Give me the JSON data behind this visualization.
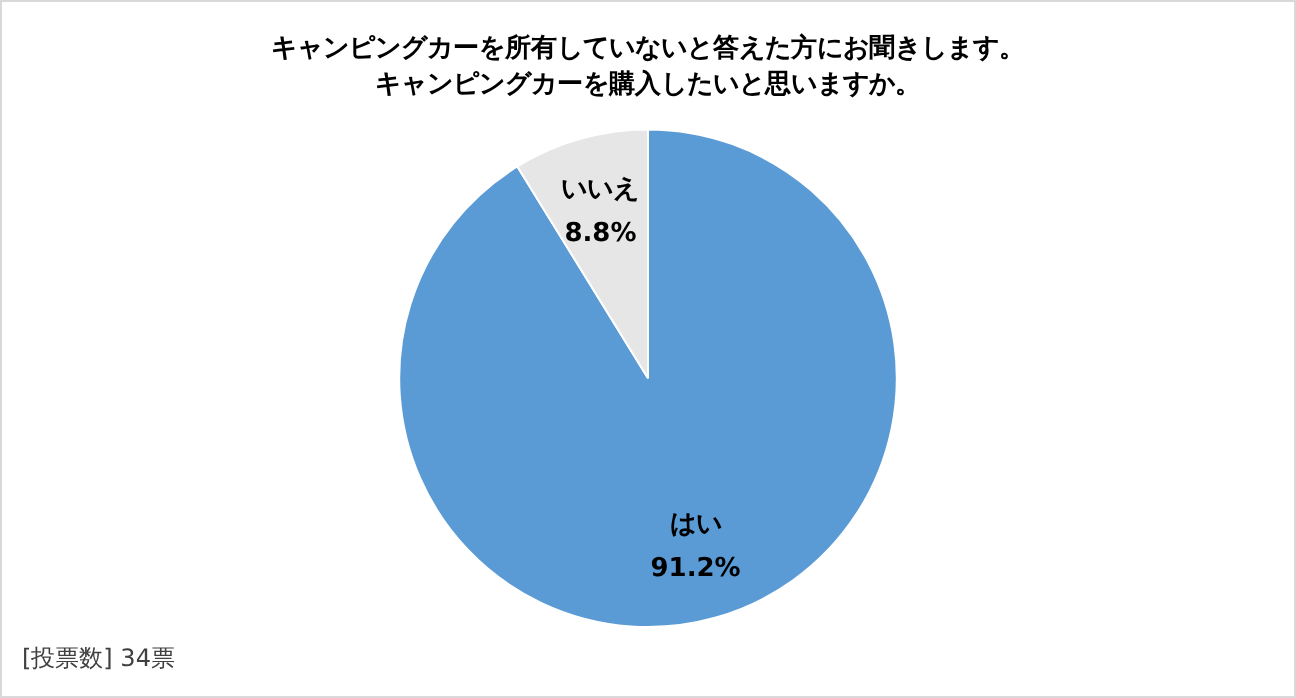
{
  "chart_data": {
    "type": "pie",
    "title": "キャンピングカーを所有していないと答えた方にお聞きします。",
    "subtitle": "キャンピングカーを購入したいと思いますか。",
    "categories": [
      "はい",
      "いいえ"
    ],
    "values": [
      91.2,
      8.8
    ],
    "value_labels": [
      "91.2%",
      "8.8%"
    ],
    "colors": [
      "#5b9bd5",
      "#e7e6e6"
    ],
    "legend": false,
    "annotations": [
      "[投票数] 34票"
    ]
  }
}
